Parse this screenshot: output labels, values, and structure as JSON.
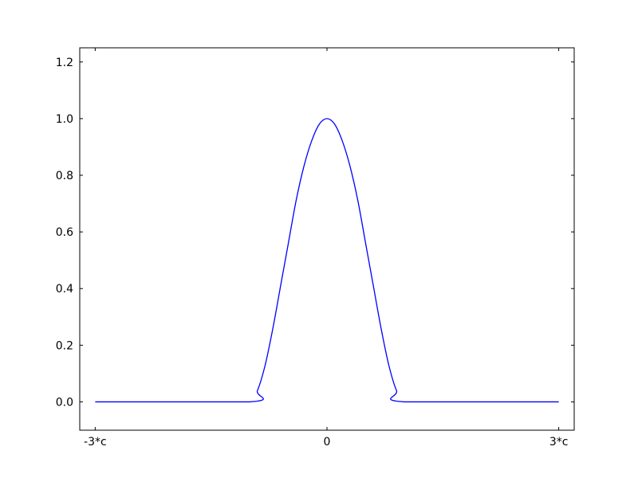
{
  "chart_data": {
    "type": "line",
    "title": "",
    "xlabel": "",
    "ylabel": "",
    "xlim": [
      -3.2,
      3.2
    ],
    "ylim": [
      -0.1,
      1.25
    ],
    "x_unit_note": "",
    "xticks": [
      {
        "value": -3,
        "label": "-3*c"
      },
      {
        "value": 0,
        "label": "0"
      },
      {
        "value": 3,
        "label": "3*c"
      }
    ],
    "yticks": [
      {
        "value": 0.0,
        "label": "0.0"
      },
      {
        "value": 0.2,
        "label": "0.2"
      },
      {
        "value": 0.4,
        "label": "0.4"
      },
      {
        "value": 0.6,
        "label": "0.6"
      },
      {
        "value": 0.8,
        "label": "0.8"
      },
      {
        "value": 1.0,
        "label": "1.0"
      },
      {
        "value": 1.2,
        "label": "1.2"
      }
    ],
    "grid": false,
    "legend": "none",
    "series": [
      {
        "color": "#0000ff",
        "x": [
          -3,
          -1,
          -0.9,
          -0.8,
          -0.7,
          -0.6,
          -0.5,
          -0.4,
          -0.3,
          -0.2,
          -0.1,
          0,
          0.1,
          0.2,
          0.3,
          0.4,
          0.5,
          0.6,
          0.7,
          0.8,
          0.9,
          1,
          3
        ],
        "y": [
          0,
          0,
          0.04,
          0.13,
          0.26,
          0.41,
          0.56,
          0.71,
          0.83,
          0.92,
          0.98,
          1.0,
          0.98,
          0.92,
          0.83,
          0.71,
          0.56,
          0.41,
          0.26,
          0.13,
          0.04,
          0,
          0
        ]
      }
    ]
  }
}
